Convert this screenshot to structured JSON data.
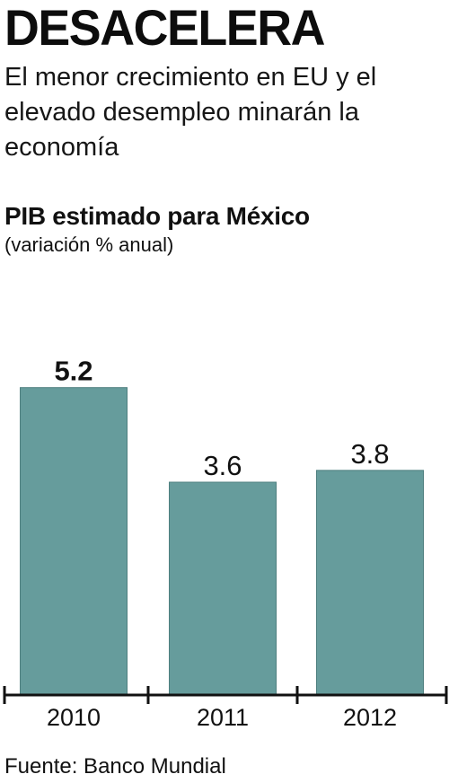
{
  "headline": "DESACELERA",
  "subhead": "El menor crecimiento en EU y el elevado desempleo minarán la economía",
  "source": "Fuente: Banco Mundial",
  "colors": {
    "bar": "#669C9C",
    "bar_stroke": "#4E7F7F",
    "axis": "#111111",
    "text": "#111111"
  },
  "chart_data": {
    "type": "bar",
    "title": "PIB estimado para México",
    "subtitle": "(variación % anual)",
    "categories": [
      "2010",
      "2011",
      "2012"
    ],
    "values": [
      5.2,
      3.6,
      3.8
    ],
    "data_labels": [
      "5.2",
      "3.6",
      "3.8"
    ],
    "ylim": [
      0,
      7.2
    ],
    "grid": false,
    "legend": "none"
  }
}
